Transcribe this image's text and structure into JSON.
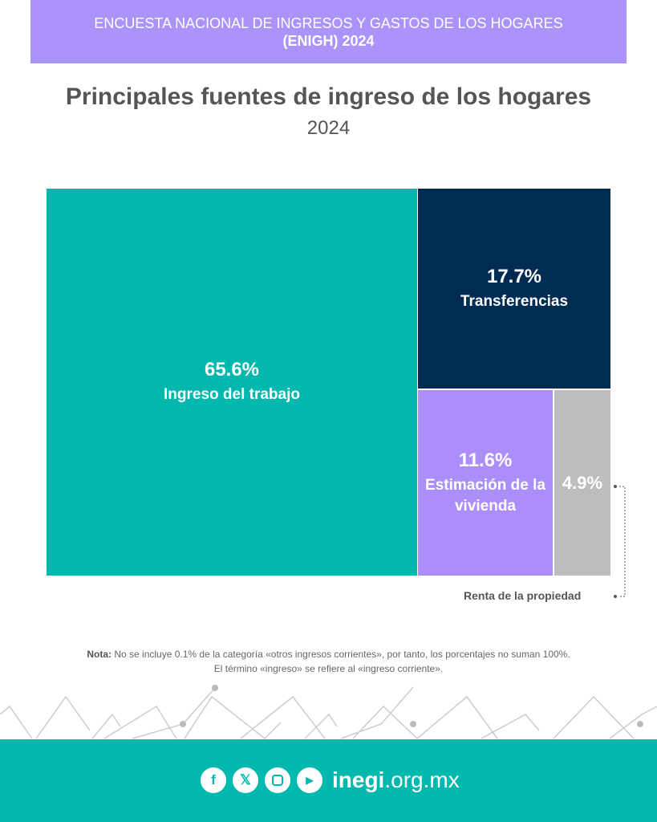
{
  "header": {
    "line1": "ENCUESTA NACIONAL DE INGRESOS Y GASTOS DE LOS HOGARES",
    "line2": "(ENIGH) 2024"
  },
  "chart_data": {
    "type": "treemap",
    "title": "Principales fuentes de ingreso de los hogares",
    "subtitle": "2024",
    "items": [
      {
        "label": "Ingreso del trabajo",
        "value": 65.6,
        "value_label": "65.6%",
        "color": "#00b8ad"
      },
      {
        "label": "Transferencias",
        "value": 17.7,
        "value_label": "17.7%",
        "color": "#002b52"
      },
      {
        "label": "Estimación de la vivienda",
        "value": 11.6,
        "value_label": "11.6%",
        "color": "#ac8efb"
      },
      {
        "label": "Renta de la propiedad",
        "value": 4.9,
        "value_label": "4.9%",
        "color": "#bdbdbd"
      }
    ]
  },
  "note": {
    "label": "Nota:",
    "line1": "No se incluye 0.1% de la categoría «otros ingresos corrientes», por tanto, los porcentajes no suman 100%.",
    "line2": "El término «ingreso» se refiere al «ingreso corriente»."
  },
  "footer": {
    "site_bold": "inegi",
    "site_rest": ".org.mx",
    "icons": [
      "facebook-icon",
      "x-icon",
      "instagram-icon",
      "youtube-icon"
    ]
  }
}
